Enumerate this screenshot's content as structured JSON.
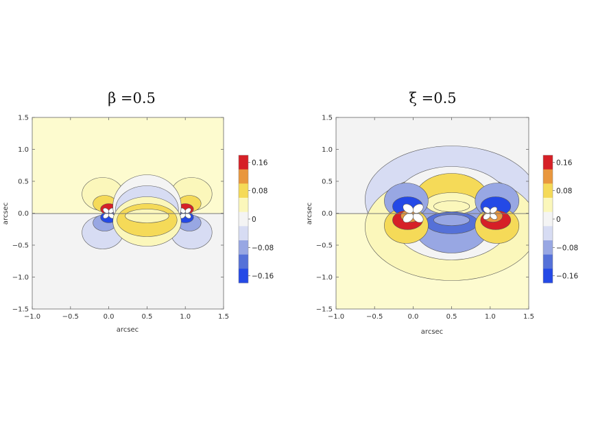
{
  "chart_data": [
    {
      "type": "contour",
      "title": "β =0.5",
      "xlabel": "arcsec",
      "ylabel": "arcsec",
      "xlim": [
        -1.0,
        1.5
      ],
      "ylim": [
        -1.5,
        1.5
      ],
      "x_ticks": [
        "−1.0",
        "−0.5",
        "0.0",
        "0.5",
        "1.0",
        "1.5"
      ],
      "y_ticks": [
        "1.5",
        "1.0",
        "0.5",
        "0.0",
        "−0.5",
        "−1.0",
        "−1.5"
      ],
      "point_sources": [
        [
          0.0,
          0.0
        ],
        [
          1.0,
          0.0
        ]
      ],
      "upper_half_sign": "positive",
      "contour_levels": [
        -0.16,
        -0.12,
        -0.08,
        -0.04,
        0,
        0.04,
        0.08,
        0.12,
        0.16
      ],
      "legend_ticks": [
        "0.16",
        "0.08",
        "0",
        "−0.08",
        "−0.16"
      ],
      "grid": false
    },
    {
      "type": "contour",
      "title": "ξ =0.5",
      "xlabel": "arcsec",
      "ylabel": "arcsec",
      "xlim": [
        -1.0,
        1.5
      ],
      "ylim": [
        -1.5,
        1.5
      ],
      "x_ticks": [
        "−1.0",
        "−0.5",
        "0.0",
        "0.5",
        "1.0",
        "1.5"
      ],
      "y_ticks": [
        "1.5",
        "1.0",
        "0.5",
        "0.0",
        "−0.5",
        "−1.0",
        "−1.5"
      ],
      "point_sources": [
        [
          0.0,
          0.0
        ],
        [
          1.0,
          0.0
        ]
      ],
      "upper_half_sign": "negative",
      "contour_levels": [
        -0.16,
        -0.12,
        -0.08,
        -0.04,
        0,
        0.04,
        0.08,
        0.12,
        0.16
      ],
      "legend_ticks": [
        "0.16",
        "0.08",
        "0",
        "−0.08",
        "−0.16"
      ],
      "grid": false
    }
  ],
  "colorbar": {
    "colors": [
      "#d62027",
      "#e9973e",
      "#f5da58",
      "#fbf7bb",
      "#f4f4f4",
      "#d7dcf3",
      "#98a7e3",
      "#5571d8",
      "#2449e6"
    ]
  }
}
